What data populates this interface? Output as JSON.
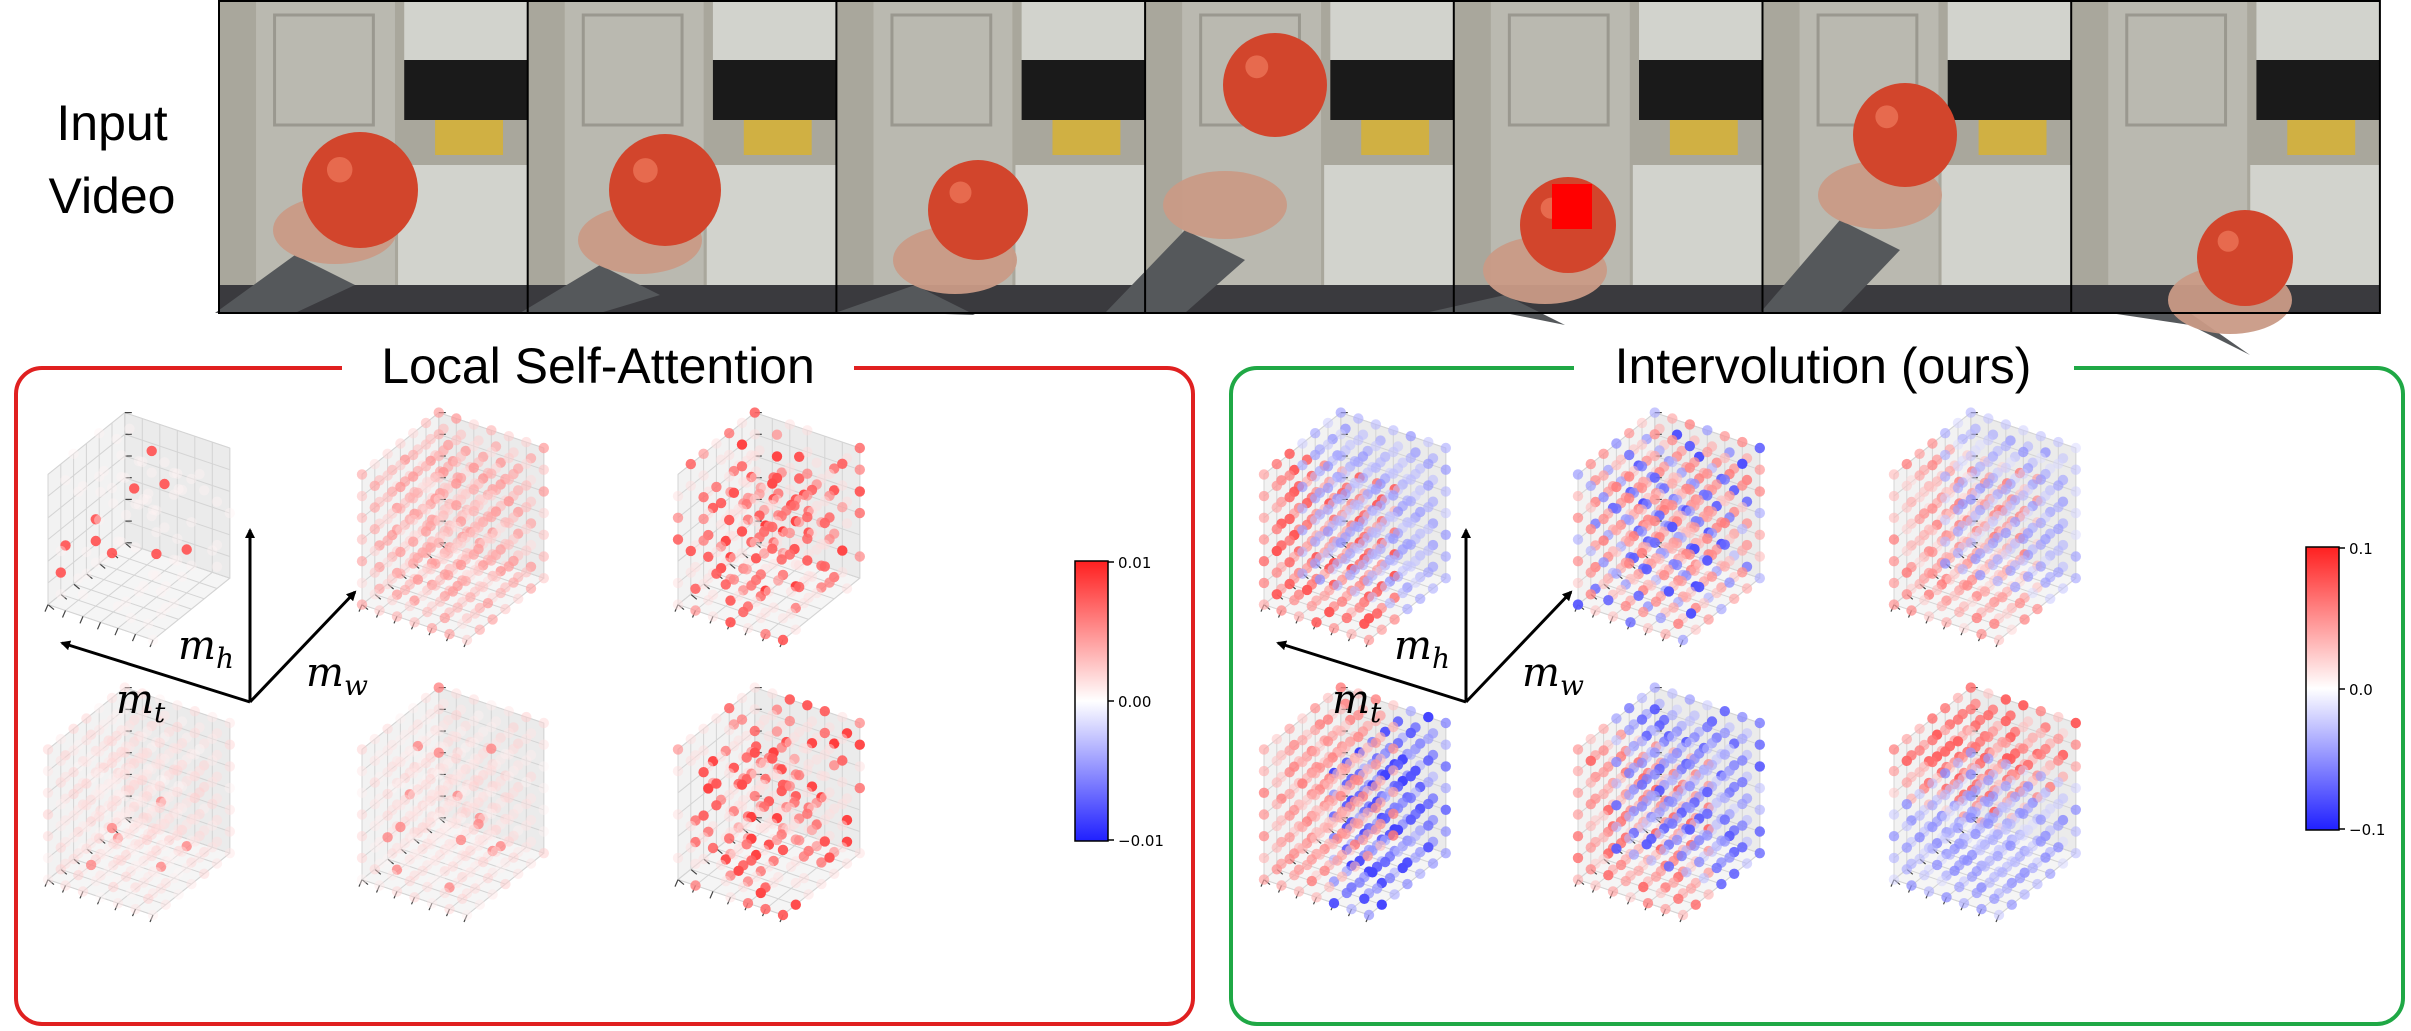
{
  "header": {
    "input_label_line1": "Input",
    "input_label_line2": "Video",
    "frame_count": 7,
    "frame_colors": {
      "wall": "#a9a79c",
      "door": "#bdbcb4",
      "cabinet": "#d2d3cd",
      "tomato": "#d2452c",
      "hand": "#c99a86",
      "sleeve": "#55585b"
    },
    "query_marker": {
      "frame_index": 4,
      "color": "#ff0000"
    }
  },
  "panels": {
    "left": {
      "title": "Local Self-Attention",
      "border_color": "#e02020",
      "colorbar": {
        "max_label": "0.01",
        "mid_label": "0.00",
        "min_label": "−0.01"
      }
    },
    "right": {
      "title": "Intervolution (ours)",
      "border_color": "#1fa845",
      "colorbar": {
        "max_label": "0.1",
        "mid_label": "0.0",
        "min_label": "−0.1"
      }
    }
  },
  "axes": {
    "t_label": "m",
    "t_sub": "t",
    "h_label": "m",
    "h_sub": "h",
    "w_label": "m",
    "w_sub": "w"
  },
  "colormap": {
    "negative": "#2020ff",
    "zero": "#ffffff",
    "positive": "#ff2020"
  }
}
